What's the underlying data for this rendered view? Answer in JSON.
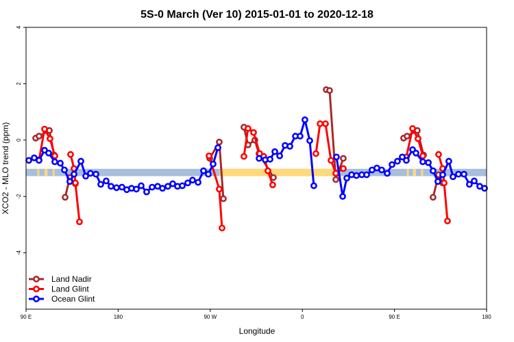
{
  "chart_data": {
    "type": "line",
    "title": "5S-0 March (Ver 10)   2015-01-01 to 2020-12-18",
    "xlabel": "Longitude",
    "ylabel": "XCO2 - MLO trend (ppm)",
    "xlim": [
      90,
      540
    ],
    "ylim": [
      -6,
      4
    ],
    "x_note": "longitude unwrapped eastward from 90E",
    "xticks": [
      {
        "value": 90,
        "label": "90 E"
      },
      {
        "value": 180,
        "label": "180"
      },
      {
        "value": 270,
        "label": "90 W"
      },
      {
        "value": 360,
        "label": "0"
      },
      {
        "value": 450,
        "label": "90 E"
      },
      {
        "value": 540,
        "label": "180"
      }
    ],
    "yticks": [
      {
        "value": 4,
        "label": "4"
      },
      {
        "value": 2,
        "label": "2"
      },
      {
        "value": 0,
        "label": "0"
      },
      {
        "value": -2,
        "label": "-2"
      },
      {
        "value": -4,
        "label": "-4"
      }
    ],
    "band": {
      "ymin": -1.28,
      "ymax": -1.02,
      "color": "#a7bedc",
      "land_color": "#ffd87a",
      "land_ranges": [
        [
          279,
          393
        ],
        [
          101,
          103
        ],
        [
          108,
          111
        ],
        [
          116,
          118
        ],
        [
          462,
          464
        ],
        [
          468,
          471
        ],
        [
          476,
          478
        ]
      ]
    },
    "legend_position": "bottom-left",
    "series": [
      {
        "name": "Land Nadir",
        "color": "#a52a2a",
        "points": [
          [
            99.4,
            0.07
          ],
          [
            102.7,
            0.14
          ],
          [
            112.8,
            0.34
          ],
          [
            117.4,
            -0.53
          ],
          null,
          [
            128.2,
            -2.03
          ],
          [
            132.8,
            -1.33
          ],
          [
            138.2,
            -1.55
          ],
          null,
          [
            269.5,
            -0.65
          ],
          [
            278.8,
            -0.07
          ],
          [
            282.8,
            -2.08
          ],
          null,
          [
            302.9,
            0.46
          ],
          [
            306.9,
            -0.17
          ],
          [
            313.6,
            0.0
          ],
          [
            317.6,
            -0.48
          ],
          [
            331.7,
            -1.33
          ],
          null,
          [
            383.3,
            1.79
          ],
          [
            386.6,
            1.76
          ],
          [
            392.7,
            -1.4
          ],
          [
            400.0,
            -0.65
          ],
          null,
          [
            458.9,
            0.07
          ],
          [
            462.3,
            0.14
          ],
          [
            472.3,
            0.34
          ],
          [
            478.4,
            -0.53
          ],
          null,
          [
            487.7,
            -2.03
          ],
          [
            493.1,
            -1.23
          ],
          [
            497.1,
            -1.52
          ]
        ]
      },
      {
        "name": "Land Glint",
        "color": "#ff0000",
        "points": [
          [
            102.7,
            -0.7
          ],
          [
            108.1,
            0.39
          ],
          [
            113.4,
            0.05
          ],
          [
            118.1,
            -0.56
          ],
          null,
          [
            133.5,
            -0.51
          ],
          [
            136.9,
            -1.01
          ],
          [
            138.2,
            -1.52
          ],
          [
            142.2,
            -2.9
          ],
          null,
          [
            268.8,
            -0.56
          ],
          [
            278.8,
            -1.74
          ],
          [
            281.5,
            -3.12
          ],
          null,
          [
            302.9,
            -0.58
          ],
          [
            306.9,
            0.41
          ],
          [
            312.3,
            0.27
          ],
          [
            318.3,
            -0.48
          ],
          [
            322.3,
            -0.58
          ],
          [
            326.3,
            -1.09
          ],
          [
            331.0,
            -1.59
          ],
          null,
          [
            373.2,
            -0.48
          ],
          [
            377.3,
            0.58
          ],
          [
            382.6,
            0.58
          ],
          [
            388.0,
            -0.72
          ],
          [
            392.7,
            -1.18
          ],
          [
            400.0,
            -1.01
          ],
          null,
          [
            461.6,
            -0.6
          ],
          [
            467.7,
            0.41
          ],
          [
            473.0,
            0.05
          ],
          [
            477.7,
            -0.56
          ],
          null,
          [
            493.1,
            -0.51
          ],
          [
            497.1,
            -1.01
          ],
          [
            498.5,
            -1.52
          ],
          [
            501.8,
            -2.87
          ]
        ]
      },
      {
        "name": "Ocean Glint",
        "color": "#0000ff",
        "points": [
          [
            92.7,
            -0.72
          ],
          [
            98.0,
            -0.63
          ],
          [
            102.7,
            -0.72
          ],
          [
            108.1,
            -0.36
          ],
          [
            112.1,
            -0.46
          ],
          [
            118.1,
            -0.77
          ],
          [
            123.5,
            -0.82
          ],
          [
            127.5,
            -1.06
          ],
          [
            132.8,
            -1.47
          ],
          [
            136.9,
            -1.21
          ],
          [
            143.6,
            -0.75
          ],
          [
            148.3,
            -1.28
          ],
          [
            152.9,
            -1.18
          ],
          [
            158.3,
            -1.21
          ],
          [
            163.0,
            -1.57
          ],
          [
            168.3,
            -1.45
          ],
          [
            173.0,
            -1.64
          ],
          [
            178.4,
            -1.69
          ],
          [
            183.7,
            -1.67
          ],
          [
            188.4,
            -1.76
          ],
          [
            193.1,
            -1.71
          ],
          [
            197.8,
            -1.74
          ],
          [
            202.5,
            -1.62
          ],
          [
            207.8,
            -1.84
          ],
          [
            213.2,
            -1.67
          ],
          [
            218.6,
            -1.64
          ],
          [
            223.3,
            -1.71
          ],
          [
            228.6,
            -1.64
          ],
          [
            233.3,
            -1.55
          ],
          [
            238.0,
            -1.64
          ],
          [
            242.7,
            -1.62
          ],
          [
            248.0,
            -1.52
          ],
          [
            252.7,
            -1.42
          ],
          [
            258.1,
            -1.5
          ],
          [
            263.4,
            -1.09
          ],
          [
            268.1,
            -1.21
          ],
          [
            272.8,
            -0.85
          ],
          [
            277.5,
            -0.27
          ],
          null,
          [
            317.7,
            -0.65
          ],
          [
            323.7,
            -0.7
          ],
          [
            328.4,
            -0.68
          ],
          [
            333.1,
            -0.41
          ],
          [
            337.8,
            -0.56
          ],
          [
            343.1,
            -0.19
          ],
          [
            347.8,
            -0.22
          ],
          [
            353.2,
            0.14
          ],
          [
            357.8,
            0.14
          ],
          [
            362.5,
            0.72
          ],
          [
            367.2,
            -0.02
          ],
          [
            371.2,
            -1.62
          ],
          null,
          [
            393.3,
            -0.6
          ],
          [
            399.4,
            -2.0
          ],
          [
            403.4,
            -1.35
          ],
          [
            408.1,
            -1.23
          ],
          [
            412.8,
            -1.26
          ],
          [
            418.1,
            -1.23
          ],
          [
            422.8,
            -1.23
          ],
          [
            428.1,
            -1.06
          ],
          [
            432.8,
            -0.99
          ],
          [
            437.5,
            -1.06
          ],
          [
            442.9,
            -1.18
          ],
          [
            447.6,
            -0.87
          ],
          [
            452.9,
            -0.75
          ],
          [
            457.6,
            -0.6
          ],
          [
            461.6,
            -0.72
          ],
          [
            467.7,
            -0.34
          ],
          [
            471.0,
            -0.46
          ],
          [
            477.7,
            -0.77
          ],
          [
            483.1,
            -0.8
          ],
          [
            487.7,
            -1.09
          ],
          [
            492.4,
            -1.47
          ],
          [
            497.1,
            -1.23
          ],
          [
            503.1,
            -0.75
          ],
          [
            507.2,
            -1.3
          ],
          [
            512.5,
            -1.21
          ],
          [
            517.9,
            -1.21
          ],
          [
            523.2,
            -1.57
          ],
          [
            527.9,
            -1.45
          ],
          [
            533.3,
            -1.64
          ],
          [
            538.0,
            -1.71
          ]
        ]
      }
    ]
  }
}
